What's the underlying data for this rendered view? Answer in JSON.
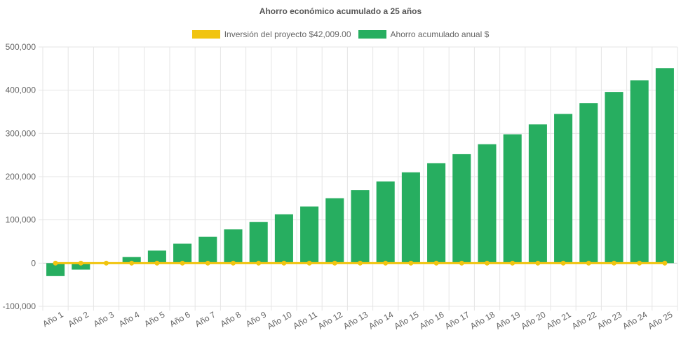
{
  "chart_data": {
    "type": "bar",
    "title": "Ahorro económico acumulado a 25 años",
    "categories": [
      "Año 1",
      "Año 2",
      "Año 3",
      "Año 4",
      "Año 5",
      "Año 6",
      "Año 7",
      "Año 8",
      "Año 9",
      "Año 10",
      "Año 11",
      "Año 12",
      "Año 13",
      "Año 14",
      "Año 15",
      "Año 16",
      "Año 17",
      "Año 18",
      "Año 19",
      "Año 20",
      "Año 21",
      "Año 22",
      "Año 23",
      "Año 24",
      "Año 25"
    ],
    "series": [
      {
        "name": "Inversión del proyecto $42,009.00",
        "type": "line",
        "color": "#f1c40f",
        "values": [
          0,
          0,
          0,
          0,
          0,
          0,
          0,
          0,
          0,
          0,
          0,
          0,
          0,
          0,
          0,
          0,
          0,
          0,
          0,
          0,
          0,
          0,
          0,
          0,
          0
        ]
      },
      {
        "name": "Ahorro acumulado anual $",
        "type": "bar",
        "color": "#27ae60",
        "values": [
          -30000,
          -15000,
          0,
          14000,
          29000,
          45000,
          61000,
          78000,
          95000,
          113000,
          131000,
          150000,
          169000,
          189000,
          210000,
          231000,
          252000,
          275000,
          298000,
          321000,
          345000,
          370000,
          396000,
          423000,
          451000
        ]
      }
    ],
    "ylim": [
      -100000,
      500000
    ],
    "yticks": [
      "500,000",
      "400,000",
      "300,000",
      "200,000",
      "100,000",
      "0",
      "-100,000"
    ],
    "ytick_values": [
      500000,
      400000,
      300000,
      200000,
      100000,
      0,
      -100000
    ],
    "grid": true,
    "legend_position": "top"
  }
}
